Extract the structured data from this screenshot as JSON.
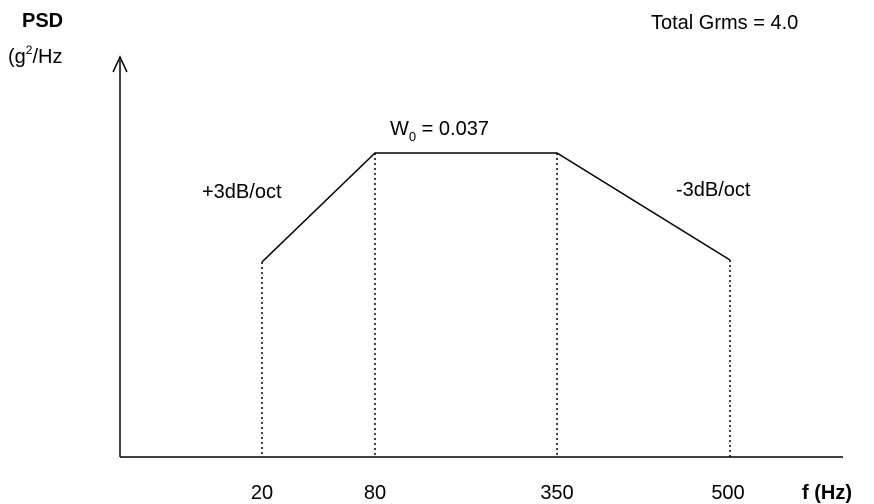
{
  "y_axis": {
    "title": "PSD",
    "unit_open": "(g",
    "unit_sup": "2",
    "unit_close": "/Hz"
  },
  "x_axis": {
    "title": "f (Hz)"
  },
  "total": "Total Grms = 4.0",
  "plateau": {
    "symbol": "W",
    "subscript": "0",
    "value_text": " = 0.037"
  },
  "slopes": {
    "rising": "+3dB/oct",
    "falling": "-3dB/oct"
  },
  "profile": [
    {
      "freq_hz": 20,
      "label": "20"
    },
    {
      "freq_hz": 80,
      "label": "80"
    },
    {
      "freq_hz": 350,
      "label": "350"
    },
    {
      "freq_hz": 500,
      "label": "500"
    }
  ]
}
